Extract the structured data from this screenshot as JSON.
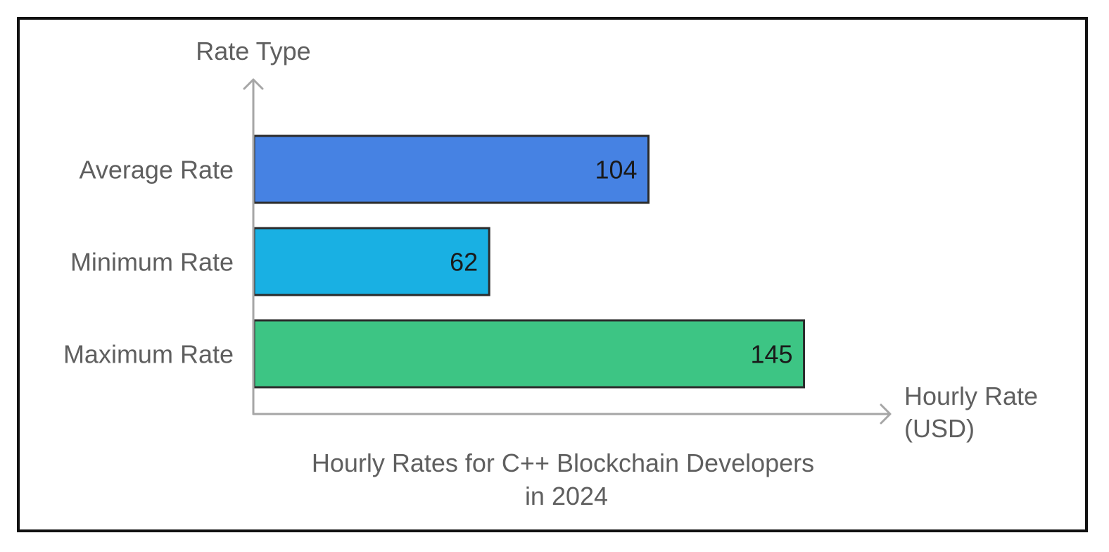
{
  "chart_data": {
    "type": "bar",
    "orientation": "horizontal",
    "categories": [
      "Average Rate",
      "Minimum Rate",
      "Maximum Rate"
    ],
    "values": [
      104,
      62,
      145
    ],
    "colors": [
      "#4682e3",
      "#19b0e3",
      "#3dc584"
    ],
    "title_lines": [
      "Hourly Rates for C++ Blockchain Developers",
      "in 2024"
    ],
    "xlabel_lines": [
      "Hourly Rate",
      "(USD)"
    ],
    "ylabel": "Rate Type",
    "xlim": [
      0,
      170
    ],
    "grid": false,
    "legend": "none"
  }
}
